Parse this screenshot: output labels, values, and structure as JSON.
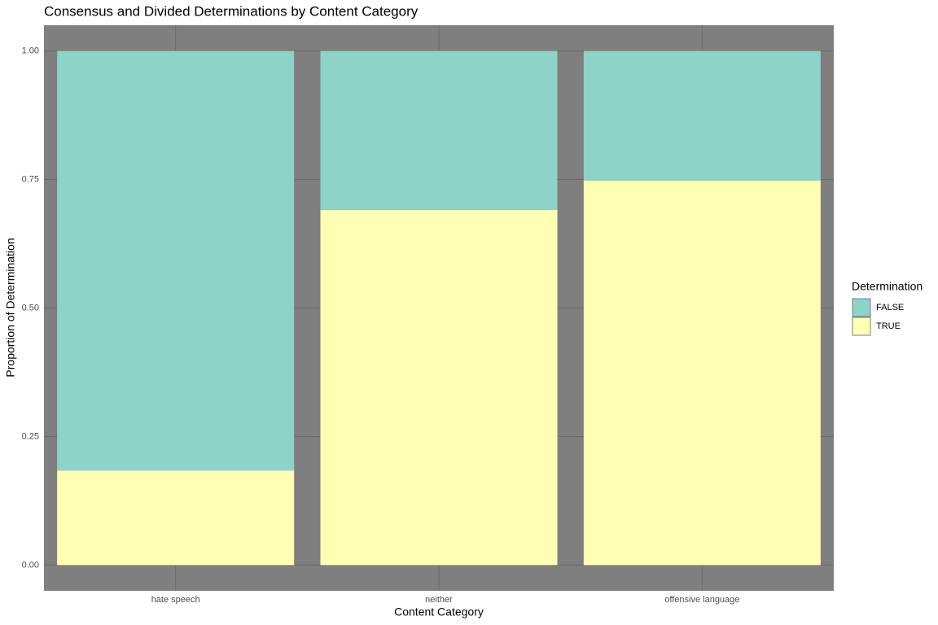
{
  "chart_data": {
    "type": "stacked-bar",
    "title": "Consensus and Divided Determinations by Content Category",
    "x_label": "Content Category",
    "y_label": "Proportion of Determination",
    "legend_title": "Determination",
    "legend_position": "right",
    "categories": [
      "hate speech",
      "neither",
      "offensive language"
    ],
    "series": [
      {
        "name": "FALSE",
        "color": "#8dd3c7",
        "values": [
          0.816,
          0.309,
          0.252
        ]
      },
      {
        "name": "TRUE",
        "color": "#ffffb3",
        "values": [
          0.184,
          0.691,
          0.748
        ]
      }
    ],
    "ylim": [
      -0.05,
      1.05
    ],
    "yticks": [
      {
        "value": 0,
        "label": "0.00"
      },
      {
        "value": 0.25,
        "label": "0.25"
      },
      {
        "value": 0.5,
        "label": "0.50"
      },
      {
        "value": 0.75,
        "label": "0.75"
      },
      {
        "value": 1,
        "label": "1.00"
      }
    ],
    "grid": true,
    "panel_color": "#7f7f7f"
  }
}
